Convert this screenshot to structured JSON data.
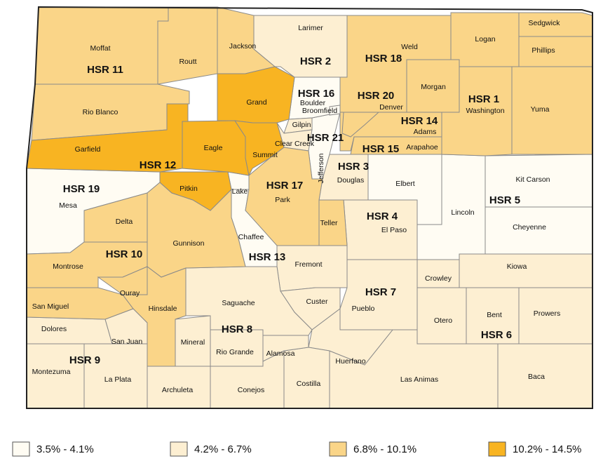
{
  "legend": [
    {
      "label": "3.5% - 4.1%",
      "color": "#fffcf3",
      "counties": [
        "Mesa",
        "Jefferson",
        "Boulder",
        "Broomfield",
        "Lake",
        "Chaffee",
        "Elbert",
        "Lincoln",
        "Kit Carson",
        "Cheyenne"
      ]
    },
    {
      "label": "4.2% - 6.7%",
      "color": "#fdefd2",
      "counties": [
        "Larimer",
        "Douglas",
        "Gilpin",
        "Clear Creek",
        "El Paso",
        "Fremont",
        "Custer",
        "Pueblo",
        "Kiowa",
        "Crowley",
        "Otero",
        "Bent",
        "Prowers",
        "Baca",
        "Las Animas",
        "Huerfano",
        "Costilla",
        "Alamosa",
        "Conejos",
        "Rio Grande",
        "Mineral",
        "Saguache",
        "Archuleta",
        "La Plata",
        "Montezuma",
        "Dolores",
        "San Juan"
      ]
    },
    {
      "label": "6.8% - 10.1%",
      "color": "#fad588",
      "counties": [
        "Moffat",
        "Routt",
        "Jackson",
        "Rio Blanco",
        "Weld",
        "Logan",
        "Sedgwick",
        "Phillips",
        "Morgan",
        "Washington",
        "Yuma",
        "Adams",
        "Arapahoe",
        "Denver",
        "Park",
        "Teller",
        "Gunnison",
        "Delta",
        "Montrose",
        "Ouray",
        "San Miguel",
        "Hinsdale"
      ]
    },
    {
      "label": "10.2% - 14.5%",
      "color": "#f8b422",
      "counties": [
        "Grand",
        "Eagle",
        "Summit",
        "Garfield",
        "Pitkin"
      ]
    }
  ],
  "regions": [
    "HSR 1",
    "HSR 2",
    "HSR 3",
    "HSR 4",
    "HSR 5",
    "HSR 6",
    "HSR 7",
    "HSR 8",
    "HSR 9",
    "HSR 10",
    "HSR 11",
    "HSR 12",
    "HSR 13",
    "HSR 14",
    "HSR 15",
    "HSR 16",
    "HSR 17",
    "HSR 18",
    "HSR 19",
    "HSR 20",
    "HSR 21"
  ]
}
